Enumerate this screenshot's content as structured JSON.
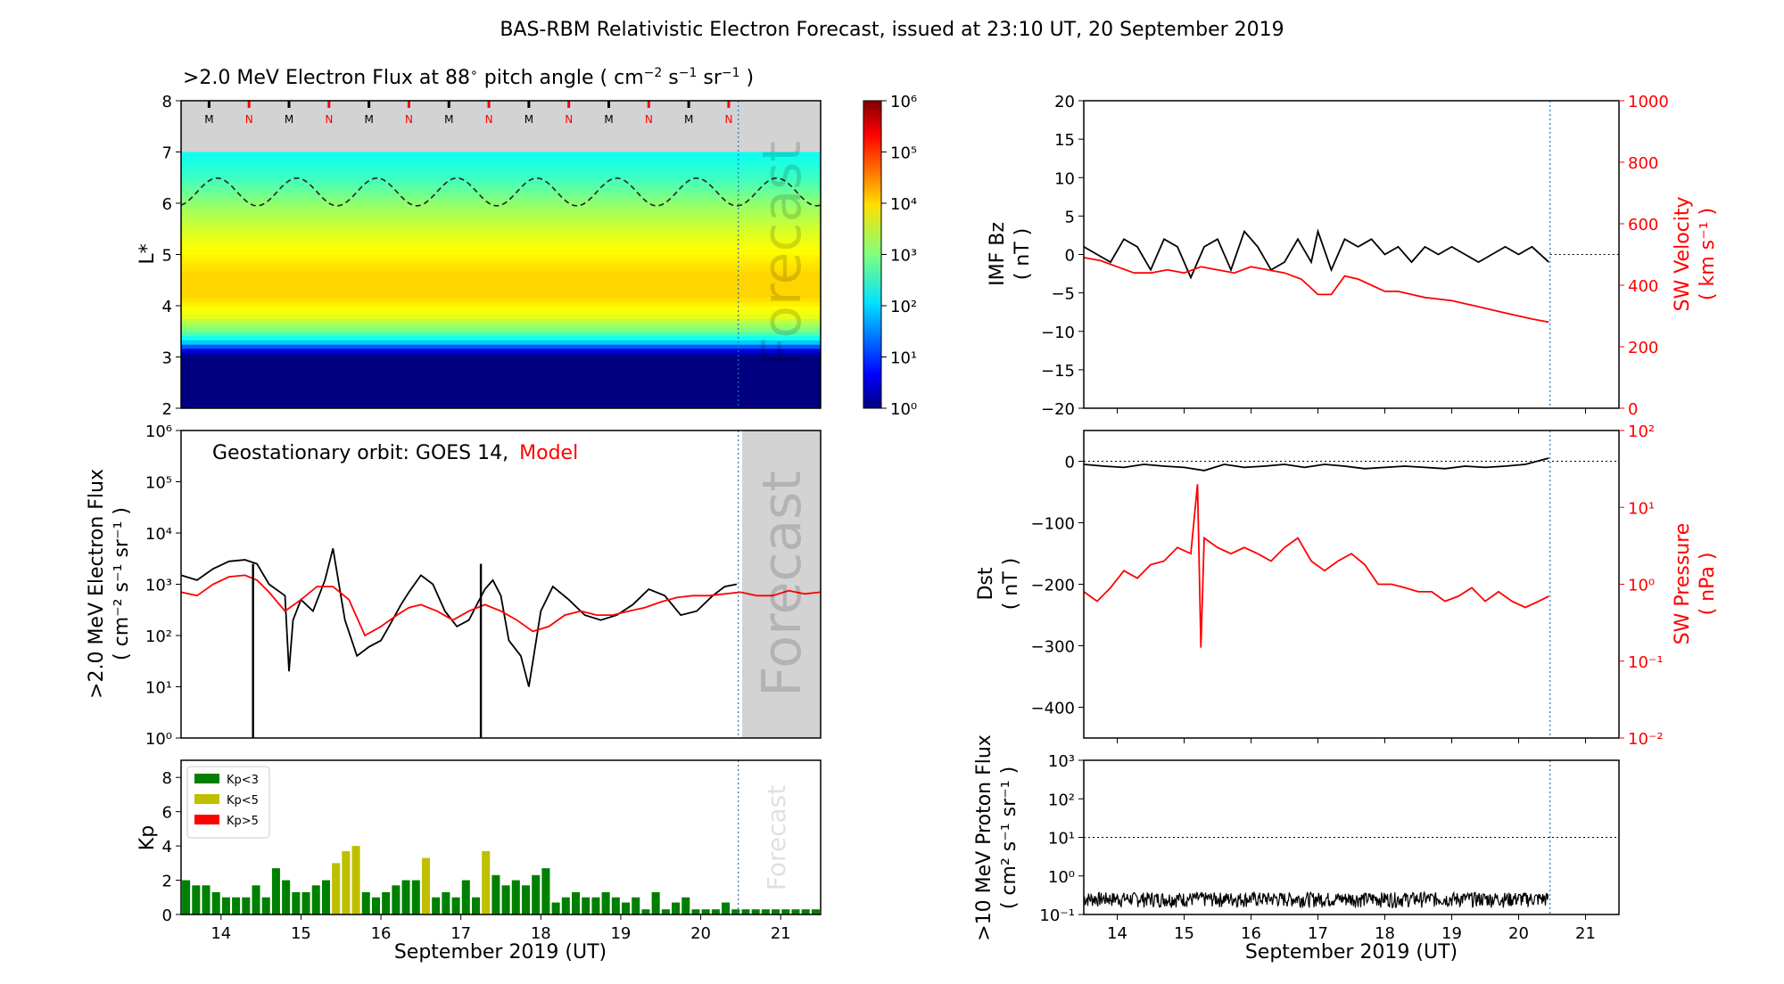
{
  "title": "BAS-RBM Relativistic Electron Forecast, issued at 23:10 UT, 20 September 2019",
  "x_axis": {
    "label": "September 2019 (UT)",
    "ticks": [
      14,
      15,
      16,
      17,
      18,
      19,
      20,
      21
    ],
    "range": [
      13.5,
      21.5
    ],
    "forecast_start": 20.47
  },
  "panels": {
    "flux_map": {
      "title_prefix": ">2.0 MeV Electron Flux at 88",
      "title_suffix": " pitch angle ( cm",
      "ylabel": "L*",
      "y_ticks": [
        2,
        3,
        4,
        5,
        6,
        7,
        8
      ],
      "forecast_label": "Forecast",
      "mn_markers": [
        "M",
        "N",
        "M",
        "N",
        "M",
        "N",
        "M",
        "N",
        "M",
        "N",
        "M",
        "N",
        "M",
        "N"
      ],
      "colorbar_ticks": [
        "10⁰",
        "10¹",
        "10²",
        "10³",
        "10⁴",
        "10⁵",
        "10⁶"
      ],
      "scale": "log"
    },
    "geo_flux": {
      "annotation_prefix": "Geostationary orbit:   GOES 14,",
      "annotation_model": "Model",
      "ylabel": ">2.0 MeV Electron Flux",
      "ylabel_units": "( cm⁻² s⁻¹ sr⁻¹ )",
      "y_ticks": [
        "10⁰",
        "10¹",
        "10²",
        "10³",
        "10⁴",
        "10⁵",
        "10⁶"
      ],
      "forecast_label": "Forecast",
      "model_color": "#ff0000"
    },
    "kp": {
      "ylabel": "Kp",
      "y_ticks": [
        0,
        2,
        4,
        6,
        8
      ],
      "legend": [
        {
          "label": "Kp<3",
          "color": "#008000"
        },
        {
          "label": "Kp<5",
          "color": "#bfbf00"
        },
        {
          "label": "Kp>5",
          "color": "#ff0000"
        }
      ],
      "forecast_label": "Forecast"
    },
    "imf": {
      "ylabel": "IMF Bz",
      "ylabel_units": "( nT )",
      "y_ticks": [
        -20,
        -15,
        -10,
        -5,
        0,
        5,
        10,
        15,
        20
      ],
      "right_label": "SW Velocity",
      "right_units": "( km s⁻¹ )",
      "right_ticks": [
        0,
        200,
        400,
        600,
        800,
        1000
      ]
    },
    "dst": {
      "ylabel": "Dst",
      "ylabel_units": "( nT )",
      "y_ticks": [
        0,
        -100,
        -200,
        -300,
        -400
      ],
      "right_label": "SW Pressure",
      "right_units": "( nPa )",
      "right_ticks": [
        "10⁻²",
        "10⁻¹",
        "10⁰",
        "10¹",
        "10²"
      ]
    },
    "proton": {
      "ylabel": ">10 MeV Proton Flux",
      "ylabel_units": "( cm² s⁻¹ sr⁻¹ )",
      "y_ticks": [
        "10⁻¹",
        "10⁰",
        "10¹",
        "10²",
        "10³"
      ],
      "threshold": 10
    }
  },
  "chart_data": [
    {
      "type": "heatmap",
      "name": "flux_map",
      "x_range": [
        13.5,
        21.5
      ],
      "y_range": [
        2,
        8
      ],
      "data_top_L": 7.0,
      "color_range_log10": [
        0,
        6
      ],
      "profile_L": [
        2.0,
        3.0,
        3.1,
        3.2,
        3.3,
        3.5,
        3.8,
        4.2,
        4.6,
        5.0,
        5.5,
        6.0,
        6.5,
        7.0
      ],
      "profile_log10_flux": [
        0.0,
        0.0,
        0.3,
        1.2,
        2.0,
        2.9,
        3.6,
        4.0,
        4.0,
        3.8,
        3.5,
        3.1,
        2.6,
        2.3
      ],
      "dashed_contour_L": {
        "mean": 6.22,
        "amplitude": 0.27,
        "period_days": 1.0
      },
      "mn_marker_days": [
        13.85,
        14.35,
        14.85,
        15.35,
        15.85,
        16.35,
        16.85,
        17.35,
        17.85,
        18.35,
        18.85,
        19.35,
        19.85,
        20.35
      ]
    },
    {
      "type": "line",
      "name": "geo_flux",
      "scale": "log",
      "ylim": [
        1,
        1000000
      ],
      "series": [
        {
          "name": "GOES 14",
          "color": "#000000",
          "x": [
            13.5,
            13.7,
            13.9,
            14.1,
            14.3,
            14.45,
            14.6,
            14.8,
            14.85,
            14.9,
            15.0,
            15.15,
            15.3,
            15.4,
            15.55,
            15.7,
            15.85,
            16.0,
            16.1,
            16.25,
            16.35,
            16.5,
            16.65,
            16.8,
            16.95,
            17.1,
            17.2,
            17.3,
            17.4,
            17.5,
            17.6,
            17.75,
            17.85,
            18.0,
            18.15,
            18.35,
            18.55,
            18.75,
            18.95,
            19.15,
            19.35,
            19.55,
            19.75,
            19.95,
            20.15,
            20.3,
            20.45
          ],
          "y": [
            1500,
            1200,
            2000,
            2800,
            3000,
            2500,
            1000,
            600,
            20,
            200,
            500,
            300,
            1200,
            5000,
            200,
            40,
            60,
            80,
            150,
            400,
            700,
            1500,
            1000,
            300,
            150,
            200,
            400,
            800,
            1200,
            600,
            80,
            40,
            10,
            300,
            900,
            500,
            250,
            200,
            250,
            400,
            800,
            600,
            250,
            300,
            600,
            900,
            1000
          ]
        },
        {
          "name": "Model",
          "color": "#ff0000",
          "x": [
            13.5,
            13.7,
            13.9,
            14.1,
            14.3,
            14.45,
            14.6,
            14.8,
            15.0,
            15.2,
            15.4,
            15.6,
            15.8,
            16.0,
            16.2,
            16.35,
            16.5,
            16.7,
            16.9,
            17.1,
            17.3,
            17.5,
            17.7,
            17.9,
            18.1,
            18.3,
            18.5,
            18.7,
            18.9,
            19.1,
            19.3,
            19.5,
            19.7,
            19.9,
            20.1,
            20.3,
            20.5,
            20.7,
            20.9,
            21.1,
            21.3,
            21.5
          ],
          "y": [
            700,
            600,
            1000,
            1400,
            1500,
            1200,
            700,
            300,
            500,
            900,
            900,
            500,
            100,
            150,
            250,
            350,
            400,
            300,
            200,
            300,
            400,
            300,
            200,
            120,
            150,
            250,
            300,
            250,
            250,
            300,
            350,
            450,
            550,
            600,
            600,
            650,
            700,
            600,
            600,
            750,
            650,
            700
          ]
        }
      ],
      "dropouts_x": [
        14.4,
        17.25
      ]
    },
    {
      "type": "bar",
      "name": "kp",
      "bar_start": 13.5,
      "bar_width_days": 0.125,
      "values": [
        2.0,
        1.7,
        1.7,
        1.3,
        1.0,
        1.0,
        1.0,
        1.7,
        1.0,
        2.7,
        2.0,
        1.3,
        1.3,
        1.7,
        2.0,
        3.0,
        3.7,
        4.0,
        1.3,
        1.0,
        1.3,
        1.7,
        2.0,
        2.0,
        3.3,
        1.0,
        1.3,
        1.0,
        2.0,
        1.0,
        3.7,
        2.3,
        1.7,
        2.0,
        1.7,
        2.3,
        2.7,
        0.7,
        1.0,
        1.3,
        1.0,
        1.0,
        1.3,
        1.0,
        0.7,
        1.0,
        0.3,
        1.3,
        0.3,
        0.7,
        1.0,
        0.3,
        0.3,
        0.3,
        0.7,
        0.3,
        0.3,
        0.3,
        0.3,
        0.3,
        0.3,
        0.3,
        0.3,
        0.3
      ],
      "color_thresholds": [
        3,
        5
      ],
      "ylim": [
        0,
        9
      ]
    },
    {
      "type": "line",
      "name": "imf_sw",
      "series": [
        {
          "name": "IMF Bz",
          "color": "#000000",
          "axis": "left",
          "x": [
            13.5,
            13.7,
            13.9,
            14.1,
            14.3,
            14.5,
            14.7,
            14.9,
            15.1,
            15.3,
            15.5,
            15.7,
            15.9,
            16.1,
            16.3,
            16.5,
            16.7,
            16.9,
            17.0,
            17.2,
            17.4,
            17.6,
            17.8,
            18.0,
            18.2,
            18.4,
            18.6,
            18.8,
            19.0,
            19.2,
            19.4,
            19.6,
            19.8,
            20.0,
            20.2,
            20.45
          ],
          "y": [
            1,
            0,
            -1,
            2,
            1,
            -2,
            2,
            1,
            -3,
            1,
            2,
            -2,
            3,
            1,
            -2,
            -1,
            2,
            -1,
            3,
            -2,
            2,
            1,
            2,
            0,
            1,
            -1,
            1,
            0,
            1,
            0,
            -1,
            0,
            1,
            0,
            1,
            -1
          ]
        },
        {
          "name": "SW Velocity",
          "color": "#ff0000",
          "axis": "right",
          "x": [
            13.5,
            13.75,
            14.0,
            14.25,
            14.5,
            14.75,
            15.0,
            15.25,
            15.5,
            15.75,
            16.0,
            16.25,
            16.5,
            16.75,
            16.9,
            17.0,
            17.2,
            17.4,
            17.6,
            17.8,
            18.0,
            18.2,
            18.4,
            18.6,
            18.8,
            19.0,
            19.2,
            19.4,
            19.6,
            19.8,
            20.0,
            20.2,
            20.45
          ],
          "y": [
            490,
            480,
            460,
            440,
            440,
            450,
            440,
            460,
            450,
            440,
            460,
            450,
            440,
            420,
            390,
            370,
            370,
            430,
            420,
            400,
            380,
            380,
            370,
            360,
            355,
            350,
            340,
            330,
            320,
            310,
            300,
            290,
            280
          ]
        }
      ],
      "left_ylim": [
        -20,
        20
      ],
      "right_ylim": [
        0,
        1000
      ],
      "zero_line": 0
    },
    {
      "type": "line",
      "name": "dst_pressure",
      "series": [
        {
          "name": "Dst",
          "color": "#000000",
          "axis": "left",
          "x": [
            13.5,
            13.8,
            14.1,
            14.4,
            14.7,
            15.0,
            15.3,
            15.6,
            15.9,
            16.2,
            16.5,
            16.8,
            17.1,
            17.4,
            17.7,
            18.0,
            18.3,
            18.6,
            18.9,
            19.2,
            19.5,
            19.8,
            20.1,
            20.45
          ],
          "y": [
            -5,
            -8,
            -10,
            -5,
            -8,
            -10,
            -15,
            -5,
            -10,
            -8,
            -5,
            -10,
            -5,
            -8,
            -12,
            -10,
            -8,
            -10,
            -12,
            -8,
            -10,
            -8,
            -5,
            5
          ]
        },
        {
          "name": "SW Pressure",
          "color": "#ff0000",
          "axis": "right",
          "scale": "log",
          "x": [
            13.5,
            13.7,
            13.9,
            14.1,
            14.3,
            14.5,
            14.7,
            14.9,
            15.1,
            15.2,
            15.25,
            15.3,
            15.5,
            15.7,
            15.9,
            16.1,
            16.3,
            16.5,
            16.7,
            16.9,
            17.1,
            17.3,
            17.5,
            17.7,
            17.9,
            18.1,
            18.3,
            18.5,
            18.7,
            18.9,
            19.1,
            19.3,
            19.5,
            19.7,
            19.9,
            20.1,
            20.3,
            20.45
          ],
          "y": [
            0.8,
            0.6,
            0.9,
            1.5,
            1.2,
            1.8,
            2.0,
            3.0,
            2.5,
            20,
            0.15,
            4,
            3,
            2.5,
            3,
            2.5,
            2,
            3,
            4,
            2,
            1.5,
            2,
            2.5,
            1.8,
            1,
            1,
            0.9,
            0.8,
            0.8,
            0.6,
            0.7,
            0.9,
            0.6,
            0.8,
            0.6,
            0.5,
            0.6,
            0.7
          ]
        }
      ],
      "left_ylim": [
        -450,
        50
      ],
      "right_ylim": [
        0.01,
        100
      ],
      "zero_line": 0
    },
    {
      "type": "line",
      "name": "proton",
      "scale": "log",
      "ylim": [
        0.1,
        1000
      ],
      "threshold": 10,
      "series": [
        {
          "name": "",
          "color": "#000000",
          "x": [
            13.5,
            20.45
          ],
          "y": [
            0.25,
            0.25
          ]
        }
      ]
    }
  ]
}
